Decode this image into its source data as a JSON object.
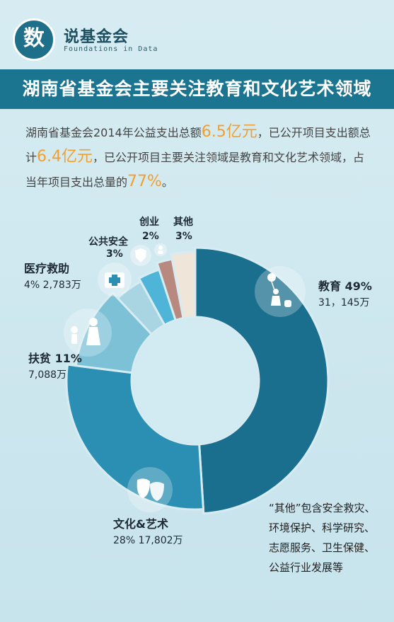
{
  "brand": {
    "char": "数",
    "title": "说基金会",
    "subtitle": "Foundations in Data"
  },
  "banner": {
    "title": "湖南省基金会主要关注教育和文化艺术领域"
  },
  "intro": {
    "p1": "湖南省基金会2014年公益支出总额",
    "v1": "6.5亿元",
    "p2": "，已公开项目支出额总计",
    "v2": "6.4亿元",
    "p3": "，已公开项目主要关注领域是教育和文化艺术领域，占当年项目支出总量的",
    "v3": "77%",
    "p4": "。"
  },
  "chart_data": {
    "type": "pie",
    "variant": "donut",
    "unit": "万",
    "slices": [
      {
        "name": "教育",
        "percent": 49,
        "value": "31,145",
        "color": "#1b6f8e",
        "icon": "child-with-balloon-icon"
      },
      {
        "name": "文化&艺术",
        "percent": 28,
        "value": "17,802",
        "color": "#2a8fb3",
        "icon": "theater-masks-icon"
      },
      {
        "name": "扶贫",
        "percent": 11,
        "value": "7,088",
        "color": "#7dc1d6",
        "icon": "helping-child-icon"
      },
      {
        "name": "医疗救助",
        "percent": 4,
        "value": "2,783",
        "color": "#a9d5e2",
        "icon": "first-aid-kit-icon"
      },
      {
        "name": "公共安全",
        "percent": 3,
        "value": "",
        "color": "#4fb5d8",
        "icon": "shield-icon"
      },
      {
        "name": "创业",
        "percent": 2,
        "value": "",
        "color": "#b88a7f",
        "icon": "person-icon"
      },
      {
        "name": "其他",
        "percent": 3,
        "value": "",
        "color": "#efe5d8",
        "icon": ""
      }
    ],
    "labels": {
      "edu_name": "教育 49%",
      "edu_val": "31，145万",
      "cult_name": "文化&艺术",
      "cult_val": "28%  17,802万",
      "pov_name": "扶贫 11%",
      "pov_val": "7,088万",
      "med_name": "医疗救助",
      "med_val": "4%  2,783万",
      "safe_name": "公共安全",
      "safe_val": "3%",
      "start_name": "创业",
      "start_val": "2%",
      "other_name": "其他",
      "other_val": "3%"
    }
  },
  "note": {
    "text": "“其他”包含安全救灾、环境保护、科学研究、志愿服务、卫生保健、公益行业发展等"
  }
}
